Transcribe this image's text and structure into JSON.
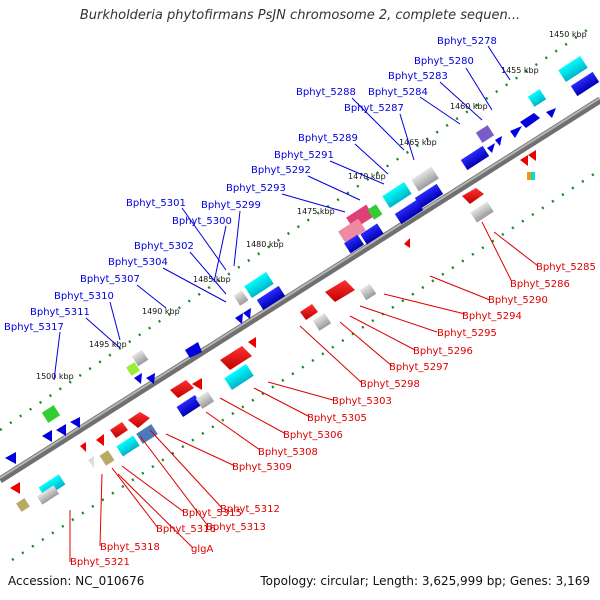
{
  "title": "Burkholderia phytofirmans PsJN chromosome 2, complete sequen...",
  "footer": {
    "accession": "Accession: NC_010676",
    "topology": "Topology: circular; Length: 3,625,999 bp; Genes: 3,169"
  },
  "ticks": [
    "1450 kbp",
    "1455 kbp",
    "1460 kbp",
    "1465 kbp",
    "1470 kbp",
    "1475 kbp",
    "1480 kbp",
    "1485 kbp",
    "1490 kbp",
    "1495 kbp",
    "1500 kbp"
  ],
  "upper_labels": [
    "Bphyt_5278",
    "Bphyt_5280",
    "Bphyt_5283",
    "Bphyt_5284",
    "Bphyt_5287",
    "Bphyt_5288",
    "Bphyt_5289",
    "Bphyt_5291",
    "Bphyt_5292",
    "Bphyt_5293",
    "Bphyt_5299",
    "Bphyt_5301",
    "Bphyt_5300",
    "Bphyt_5302",
    "Bphyt_5304",
    "Bphyt_5307",
    "Bphyt_5310",
    "Bphyt_5311",
    "Bphyt_5317"
  ],
  "lower_labels": [
    "Bphyt_5285",
    "Bphyt_5286",
    "Bphyt_5290",
    "Bphyt_5294",
    "Bphyt_5295",
    "Bphyt_5296",
    "Bphyt_5297",
    "Bphyt_5298",
    "Bphyt_5303",
    "Bphyt_5305",
    "Bphyt_5306",
    "Bphyt_5308",
    "Bphyt_5309",
    "Bphyt_5312",
    "Bphyt_5313",
    "Bphyt_5315",
    "Bphyt_5316",
    "glgA",
    "Bphyt_5318",
    "Bphyt_5321"
  ],
  "colors": {
    "forward": "#0000ee",
    "reverse": "#ee0000",
    "cyan": "#00dddd",
    "gray": "#bbbbbb",
    "backbone": "#888888"
  }
}
